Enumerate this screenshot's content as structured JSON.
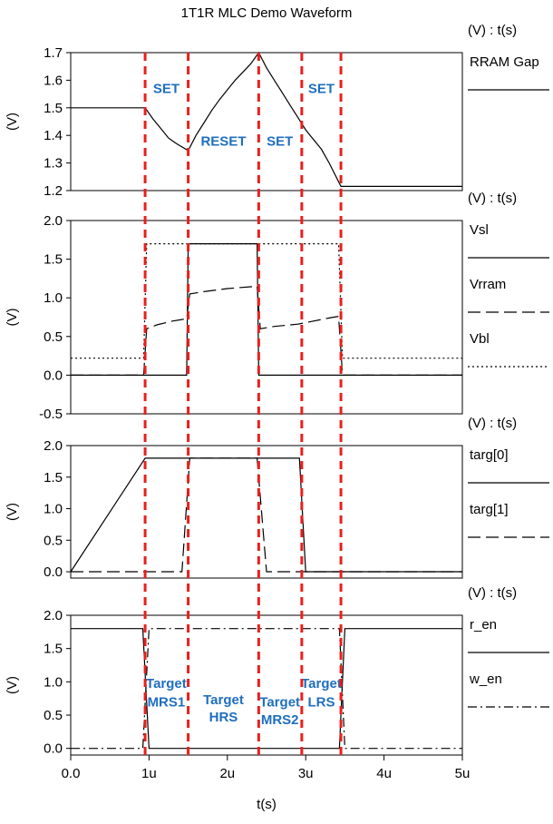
{
  "chart_data": {
    "type": "line",
    "title": "1T1R MLC Demo Waveform",
    "xlabel": "t(s)",
    "x_ticks": [
      {
        "value": 0,
        "label": "0.0"
      },
      {
        "value": 1,
        "label": "1u"
      },
      {
        "value": 2,
        "label": "2u"
      },
      {
        "value": 3,
        "label": "3u"
      },
      {
        "value": 4,
        "label": "4u"
      },
      {
        "value": 5,
        "label": "5u"
      }
    ],
    "xlim": [
      0,
      5
    ],
    "vlines": [
      0.95,
      1.5,
      2.4,
      2.95,
      3.45
    ],
    "vline_color": "#e8201c",
    "annotation_color": "#1f6fbf",
    "panels": [
      {
        "ylabel": "(V)",
        "unit_label": "(V) : t(s)",
        "ylim": [
          1.2,
          1.7
        ],
        "yticks": [
          "1.2",
          "1.3",
          "1.4",
          "1.5",
          "1.6",
          "1.7"
        ],
        "ytick_values": [
          1.2,
          1.3,
          1.4,
          1.5,
          1.6,
          1.7
        ],
        "series": [
          {
            "name": "RRAM Gap",
            "style": "solid",
            "x": [
              0,
              0.95,
              1.05,
              1.15,
              1.25,
              1.35,
              1.5,
              1.6,
              1.7,
              1.8,
              1.9,
              2.0,
              2.1,
              2.2,
              2.3,
              2.4,
              2.5,
              2.6,
              2.7,
              2.8,
              2.9,
              3.0,
              3.1,
              3.2,
              3.3,
              3.45,
              5
            ],
            "y": [
              1.5,
              1.5,
              1.46,
              1.425,
              1.39,
              1.37,
              1.345,
              1.4,
              1.445,
              1.49,
              1.53,
              1.565,
              1.6,
              1.63,
              1.66,
              1.7,
              1.645,
              1.6,
              1.555,
              1.51,
              1.465,
              1.42,
              1.385,
              1.35,
              1.3,
              1.215,
              1.215
            ]
          }
        ],
        "annotations": [
          {
            "text": "SET",
            "x": 1.22,
            "y": 1.57
          },
          {
            "text": "RESET",
            "x": 1.95,
            "y": 1.38
          },
          {
            "text": "SET",
            "x": 2.67,
            "y": 1.38
          },
          {
            "text": "SET",
            "x": 3.2,
            "y": 1.57
          }
        ]
      },
      {
        "ylabel": "(V)",
        "unit_label": "(V) : t(s)",
        "ylim": [
          -0.5,
          2.0
        ],
        "yticks": [
          "-0.5",
          "0.0",
          "0.5",
          "1.0",
          "1.5",
          "2.0"
        ],
        "ytick_values": [
          -0.5,
          0.0,
          0.5,
          1.0,
          1.5,
          2.0
        ],
        "series": [
          {
            "name": "Vsl",
            "style": "solid",
            "x": [
              0,
              1.48,
              1.5,
              2.38,
              2.4,
              5
            ],
            "y": [
              0,
              0,
              1.7,
              1.7,
              0,
              0
            ]
          },
          {
            "name": "Vrram",
            "style": "dashed",
            "x": [
              0,
              0.93,
              0.97,
              1.1,
              1.3,
              1.48,
              1.52,
              1.7,
              2.0,
              2.38,
              2.42,
              2.6,
              2.9,
              3.1,
              3.3,
              3.42,
              3.47,
              5
            ],
            "y": [
              0,
              0,
              0.6,
              0.65,
              0.7,
              0.73,
              1.05,
              1.08,
              1.12,
              1.15,
              0.6,
              0.63,
              0.66,
              0.7,
              0.74,
              0.76,
              0,
              0
            ]
          },
          {
            "name": "Vbl",
            "style": "dotted",
            "x": [
              0,
              0.93,
              0.97,
              3.42,
              3.47,
              5
            ],
            "y": [
              0.22,
              0.22,
              1.7,
              1.7,
              0.22,
              0.22
            ]
          }
        ],
        "annotations": []
      },
      {
        "ylabel": "(V)",
        "unit_label": "(V) : t(s)",
        "ylim": [
          -0.1,
          2.0
        ],
        "yticks": [
          "0.0",
          "0.5",
          "1.0",
          "1.5",
          "2.0"
        ],
        "ytick_values": [
          0.0,
          0.5,
          1.0,
          1.5,
          2.0
        ],
        "series": [
          {
            "name": "targ[0]",
            "style": "solid",
            "x": [
              0,
              0.95,
              2.92,
              3.0,
              5
            ],
            "y": [
              0,
              1.8,
              1.8,
              0,
              0
            ]
          },
          {
            "name": "targ[1]",
            "style": "dashed",
            "x": [
              0,
              1.42,
              1.52,
              2.38,
              2.5,
              5
            ],
            "y": [
              0,
              0,
              1.8,
              1.8,
              0,
              0
            ]
          }
        ],
        "annotations": []
      },
      {
        "ylabel": "(V)",
        "unit_label": "(V) : t(s)",
        "ylim": [
          -0.1,
          2.0
        ],
        "yticks": [
          "0.0",
          "0.5",
          "1.0",
          "1.5",
          "2.0"
        ],
        "ytick_values": [
          0.0,
          0.5,
          1.0,
          1.5,
          2.0
        ],
        "series": [
          {
            "name": "r_en",
            "style": "solid",
            "x": [
              0,
              0.92,
              1.0,
              3.43,
              3.5,
              5
            ],
            "y": [
              1.8,
              1.8,
              0,
              0,
              1.8,
              1.8
            ]
          },
          {
            "name": "w_en",
            "style": "dashdot",
            "x": [
              0,
              0.92,
              1.0,
              3.43,
              3.5,
              5
            ],
            "y": [
              0,
              0,
              1.8,
              1.8,
              0,
              0
            ]
          }
        ],
        "annotations": [
          {
            "text": "Target",
            "x": 1.22,
            "y": 0.98
          },
          {
            "text": "MRS1",
            "x": 1.22,
            "y": 0.7
          },
          {
            "text": "Target",
            "x": 1.95,
            "y": 0.73
          },
          {
            "text": "HRS",
            "x": 1.95,
            "y": 0.47
          },
          {
            "text": "Target",
            "x": 2.67,
            "y": 0.7
          },
          {
            "text": "MRS2",
            "x": 2.67,
            "y": 0.43
          },
          {
            "text": "Target",
            "x": 3.2,
            "y": 0.98
          },
          {
            "text": "LRS",
            "x": 3.2,
            "y": 0.7
          }
        ]
      }
    ]
  }
}
